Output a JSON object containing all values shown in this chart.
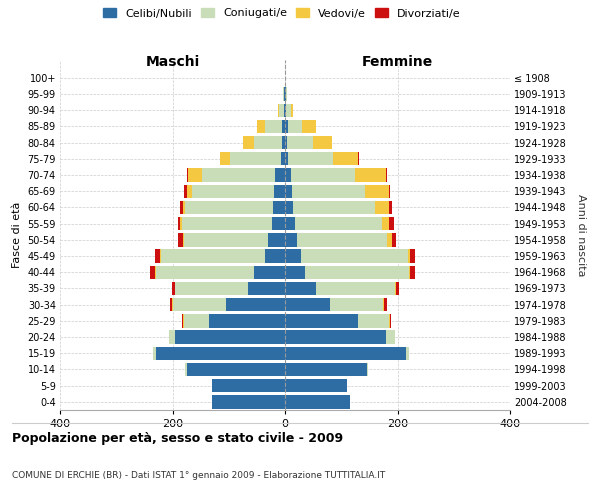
{
  "age_groups": [
    "0-4",
    "5-9",
    "10-14",
    "15-19",
    "20-24",
    "25-29",
    "30-34",
    "35-39",
    "40-44",
    "45-49",
    "50-54",
    "55-59",
    "60-64",
    "65-69",
    "70-74",
    "75-79",
    "80-84",
    "85-89",
    "90-94",
    "95-99",
    "100+"
  ],
  "birth_years": [
    "2004-2008",
    "1999-2003",
    "1994-1998",
    "1989-1993",
    "1984-1988",
    "1979-1983",
    "1974-1978",
    "1969-1973",
    "1964-1968",
    "1959-1963",
    "1954-1958",
    "1949-1953",
    "1944-1948",
    "1939-1943",
    "1934-1938",
    "1929-1933",
    "1924-1928",
    "1919-1923",
    "1914-1918",
    "1909-1913",
    "≤ 1908"
  ],
  "male": {
    "celibi": [
      130,
      130,
      175,
      230,
      195,
      135,
      105,
      65,
      55,
      35,
      30,
      23,
      22,
      20,
      18,
      8,
      5,
      5,
      2,
      1,
      0
    ],
    "coniugati": [
      0,
      0,
      2,
      5,
      12,
      45,
      95,
      130,
      175,
      185,
      150,
      160,
      155,
      145,
      130,
      90,
      50,
      30,
      8,
      2,
      0
    ],
    "vedovi": [
      0,
      0,
      0,
      0,
      0,
      1,
      1,
      1,
      2,
      2,
      2,
      3,
      5,
      10,
      25,
      18,
      20,
      15,
      2,
      0,
      0
    ],
    "divorziati": [
      0,
      0,
      0,
      0,
      0,
      2,
      3,
      5,
      8,
      10,
      8,
      5,
      5,
      5,
      2,
      0,
      0,
      0,
      0,
      0,
      0
    ]
  },
  "female": {
    "nubili": [
      115,
      110,
      145,
      215,
      180,
      130,
      80,
      55,
      35,
      28,
      22,
      18,
      15,
      12,
      10,
      5,
      4,
      5,
      2,
      1,
      0
    ],
    "coniugate": [
      0,
      0,
      2,
      5,
      15,
      55,
      95,
      140,
      185,
      190,
      160,
      155,
      145,
      130,
      115,
      80,
      45,
      25,
      8,
      2,
      0
    ],
    "vedove": [
      0,
      0,
      0,
      0,
      0,
      1,
      1,
      2,
      3,
      5,
      8,
      12,
      25,
      42,
      55,
      45,
      35,
      25,
      5,
      1,
      0
    ],
    "divorziate": [
      0,
      0,
      0,
      0,
      1,
      2,
      5,
      5,
      8,
      8,
      8,
      8,
      5,
      3,
      2,
      1,
      0,
      0,
      0,
      0,
      0
    ]
  },
  "colors": {
    "celibi": "#2e6da4",
    "coniugati": "#c8ddb8",
    "vedovi": "#f5c842",
    "divorziati": "#cc1010"
  },
  "xlim": 400,
  "title": "Popolazione per età, sesso e stato civile - 2009",
  "subtitle": "COMUNE DI ERCHIE (BR) - Dati ISTAT 1° gennaio 2009 - Elaborazione TUTTITALIA.IT",
  "ylabel": "Fasce di età",
  "ylabel_right": "Anni di nascita",
  "xlabel_left": "Maschi",
  "xlabel_right": "Femmine"
}
